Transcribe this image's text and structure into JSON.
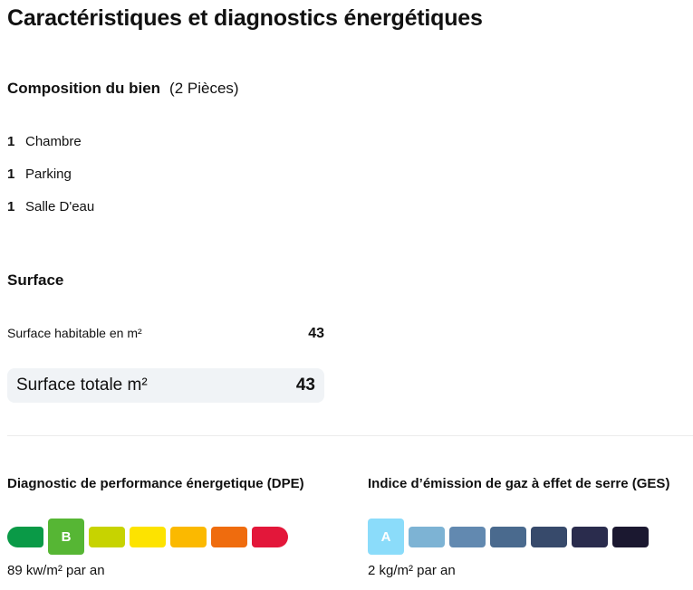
{
  "title": "Caractéristiques et diagnostics énergétiques",
  "composition": {
    "heading": "Composition du bien",
    "sub": "(2 Pièces)",
    "rooms": [
      {
        "count": "1",
        "label": "Chambre"
      },
      {
        "count": "1",
        "label": "Parking"
      },
      {
        "count": "1",
        "label": "Salle D'eau"
      }
    ]
  },
  "surface": {
    "heading": "Surface",
    "habitable_label": "Surface habitable en m²",
    "habitable_value": "43",
    "total_label": "Surface totale m²",
    "total_value": "43"
  },
  "dpe": {
    "heading": "Diagnostic de performance énergetique (DPE)",
    "active_label": "B",
    "value": "89 kw/m² par an",
    "colors": [
      "#0a9a47",
      "#56b634",
      "#c7d300",
      "#fde300",
      "#fbb900",
      "#ef6c0e",
      "#e3173a"
    ]
  },
  "ges": {
    "heading": "Indice d’émission de gaz à effet de serre (GES)",
    "active_label": "A",
    "value": "2 kg/m² par an",
    "colors": [
      "#8bdcfa",
      "#7db3d4",
      "#6289b0",
      "#4a6a8e",
      "#374a6b",
      "#2a2c4d",
      "#1b1830"
    ]
  }
}
